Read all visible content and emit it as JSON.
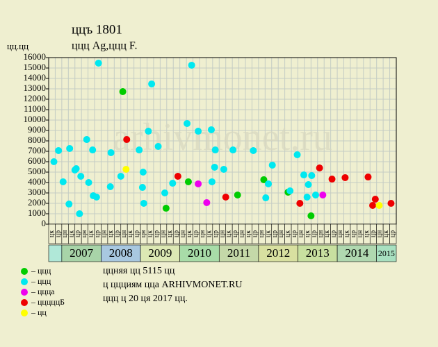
{
  "chart_data": {
    "type": "scatter",
    "title": "ццъ 1801",
    "subtitle": "ццц Ag,ццц F.",
    "y_label": "цц.цц",
    "watermark": "arhivmonet.ru",
    "xlim": [
      0,
      53
    ],
    "ylim": [
      0,
      16000
    ],
    "yticks": [
      0,
      1000,
      2000,
      3000,
      4000,
      5000,
      6000,
      7000,
      8000,
      9000,
      10000,
      11000,
      12000,
      13000,
      14000,
      15000,
      16000
    ],
    "grid": true,
    "categories": [
      "цк",
      "цр",
      "цн",
      "цк",
      "цр",
      "цн",
      "цк",
      "цр",
      "цн",
      "цк",
      "цр",
      "цн",
      "цк",
      "цр",
      "цн",
      "цк",
      "цр",
      "цн",
      "цк",
      "цр",
      "цн",
      "цк",
      "цр",
      "цн",
      "цк",
      "цр",
      "цн",
      "цк",
      "цр",
      "цн",
      "цк",
      "цр",
      "цн",
      "цк",
      "цр",
      "цн",
      "цк",
      "цр",
      "цн",
      "цк",
      "цр",
      "цн",
      "цк",
      "цр",
      "цн",
      "цк",
      "цр",
      "цн",
      "цк",
      "цр",
      "цн",
      "цк",
      "цр"
    ],
    "years": [
      null,
      "2007",
      "2008",
      "2009",
      "2010",
      "2011",
      "2012",
      "2013",
      "2014",
      "2015"
    ],
    "year_colors": [
      "#b0e8d8",
      "#a8d4a8",
      "#a8c8e0",
      "#dce8b4",
      "#a8dca8",
      "#c4d8a8",
      "#d8e0a0",
      "#c8e0a0",
      "#b0d8b0",
      "#a8e0c0"
    ],
    "series": [
      {
        "name": "– ццц",
        "color": "#00cc00",
        "x": [
          11.3,
          17.9,
          21.3,
          28.8,
          32.8,
          36.5,
          40.0
        ],
        "values": [
          12730,
          1530,
          4070,
          2800,
          4270,
          3070,
          800
        ]
      },
      {
        "name": "– ццц",
        "color": "#00e8f0",
        "x": [
          0.8,
          1.5,
          2.2,
          3.1,
          3.2,
          4.0,
          4.2,
          4.7,
          4.9,
          5.8,
          6.1,
          6.7,
          6.8,
          7.3,
          7.6,
          9.4,
          9.5,
          11.0,
          13.8,
          14.3,
          14.4,
          14.5,
          15.2,
          15.7,
          16.7,
          17.7,
          18.9,
          21.1,
          21.8,
          22.8,
          24.8,
          24.9,
          25.3,
          25.4,
          26.7,
          28.1,
          31.2,
          33.1,
          33.5,
          34.1,
          36.8,
          37.9,
          38.9,
          39.4,
          39.6,
          40.1,
          40.7
        ],
        "values": [
          6000,
          7070,
          4070,
          1930,
          7270,
          5200,
          5330,
          1000,
          4600,
          8130,
          4000,
          7130,
          2730,
          2600,
          15470,
          3600,
          6870,
          4600,
          7130,
          3530,
          5000,
          2000,
          8930,
          13470,
          7470,
          3000,
          3930,
          9670,
          15270,
          8930,
          9070,
          4070,
          5470,
          7130,
          5270,
          7130,
          7070,
          2530,
          3870,
          5670,
          3200,
          6670,
          4730,
          2600,
          3800,
          4670,
          2800
        ]
      },
      {
        "name": "– ццца",
        "color": "#ee00ee",
        "x": [
          22.8,
          24.1,
          41.8
        ],
        "values": [
          3870,
          2070,
          2800
        ]
      },
      {
        "name": "– цццццБ",
        "color": "#ee0000",
        "x": [
          11.9,
          19.7,
          27.0,
          38.3,
          41.3,
          43.2,
          45.2,
          48.7,
          49.4,
          49.8,
          52.2
        ],
        "values": [
          8130,
          4600,
          2600,
          2000,
          5400,
          4330,
          4470,
          4530,
          1800,
          2400,
          2000
        ]
      },
      {
        "name": "– цц",
        "color": "#ffff00",
        "x": [
          11.8,
          50.4
        ],
        "values": [
          5270,
          1800
        ]
      }
    ],
    "notes": [
      "ццняя цц 5115 цц",
      "ц ццциям цца ARHIVMONET.RU",
      "ццц ц 20 ця 2017 цц."
    ]
  }
}
